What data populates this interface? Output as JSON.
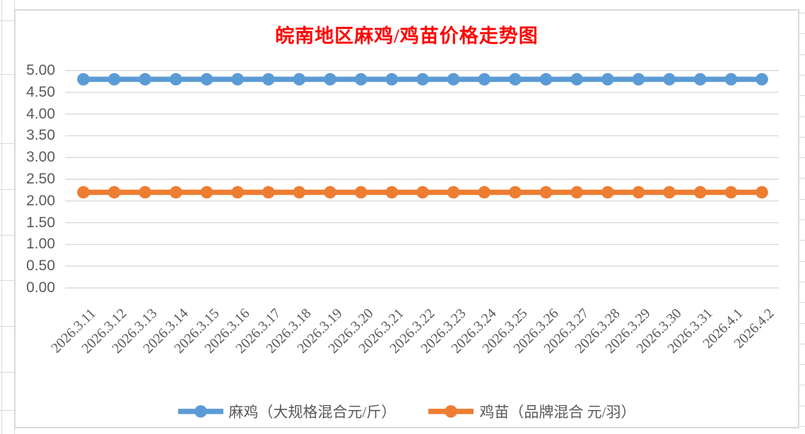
{
  "chart_data": {
    "type": "line",
    "title": "皖南地区麻鸡/鸡苗价格走势图",
    "title_color": "#FF0000",
    "categories": [
      "2026.3.11",
      "2026.3.12",
      "2026.3.13",
      "2026.3.14",
      "2026.3.15",
      "2026.3.16",
      "2026.3.17",
      "2026.3.18",
      "2026.3.19",
      "2026.3.20",
      "2026.3.21",
      "2026.3.22",
      "2026.3.23",
      "2026.3.24",
      "2026.3.25",
      "2026.3.26",
      "2026.3.27",
      "2026.3.28",
      "2026.3.29",
      "2026.3.30",
      "2026.3.31",
      "2026.4.1",
      "2026.4.2"
    ],
    "series": [
      {
        "name": "麻鸡（大规格混合元/斤）",
        "color": "#5B9BD5",
        "values": [
          4.8,
          4.8,
          4.8,
          4.8,
          4.8,
          4.8,
          4.8,
          4.8,
          4.8,
          4.8,
          4.8,
          4.8,
          4.8,
          4.8,
          4.8,
          4.8,
          4.8,
          4.8,
          4.8,
          4.8,
          4.8,
          4.8,
          4.8
        ]
      },
      {
        "name": "鸡苗（品牌混合 元/羽）",
        "color": "#ED7D31",
        "values": [
          2.2,
          2.2,
          2.2,
          2.2,
          2.2,
          2.2,
          2.2,
          2.2,
          2.2,
          2.2,
          2.2,
          2.2,
          2.2,
          2.2,
          2.2,
          2.2,
          2.2,
          2.2,
          2.2,
          2.2,
          2.2,
          2.2,
          2.2
        ]
      }
    ],
    "xlabel": "",
    "ylabel": "",
    "ylim": [
      0,
      5
    ],
    "ytick_step": 0.5,
    "ytick_labels": [
      "5.00",
      "4.50",
      "4.00",
      "3.50",
      "3.00",
      "2.50",
      "2.00",
      "1.50",
      "1.00",
      "0.50",
      "0.00"
    ],
    "grid": true,
    "gridline_color": "#D9D9D9",
    "axis_text_color": "#595959",
    "legend_position": "bottom",
    "x_label_rotation": -45,
    "marker": "circle"
  }
}
